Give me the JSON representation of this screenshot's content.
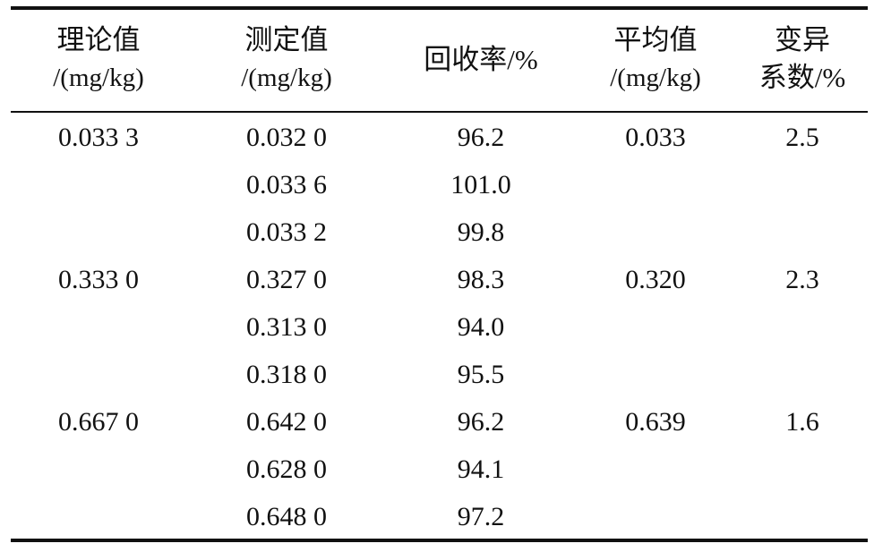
{
  "table": {
    "headers": {
      "theoretical": {
        "line1": "理论值",
        "line2": "/(mg/kg)"
      },
      "measured": {
        "line1": "测定值",
        "line2": "/(mg/kg)"
      },
      "recovery": {
        "line1": "回收率/%"
      },
      "mean": {
        "line1": "平均值",
        "line2": "/(mg/kg)"
      },
      "cv": {
        "line1": "变异",
        "line2": "系数/%"
      }
    },
    "rows": [
      {
        "theoretical": "0.033 3",
        "measured": "0.032 0",
        "recovery": "96.2",
        "mean": "0.033",
        "cv": "2.5"
      },
      {
        "theoretical": "",
        "measured": "0.033 6",
        "recovery": "101.0",
        "mean": "",
        "cv": ""
      },
      {
        "theoretical": "",
        "measured": "0.033 2",
        "recovery": "99.8",
        "mean": "",
        "cv": ""
      },
      {
        "theoretical": "0.333 0",
        "measured": "0.327 0",
        "recovery": "98.3",
        "mean": "0.320",
        "cv": "2.3"
      },
      {
        "theoretical": "",
        "measured": "0.313 0",
        "recovery": "94.0",
        "mean": "",
        "cv": ""
      },
      {
        "theoretical": "",
        "measured": "0.318 0",
        "recovery": "95.5",
        "mean": "",
        "cv": ""
      },
      {
        "theoretical": "0.667 0",
        "measured": "0.642 0",
        "recovery": "96.2",
        "mean": "0.639",
        "cv": "1.6"
      },
      {
        "theoretical": "",
        "measured": "0.628 0",
        "recovery": "94.1",
        "mean": "",
        "cv": ""
      },
      {
        "theoretical": "",
        "measured": "0.648 0",
        "recovery": "97.2",
        "mean": "",
        "cv": ""
      }
    ]
  }
}
